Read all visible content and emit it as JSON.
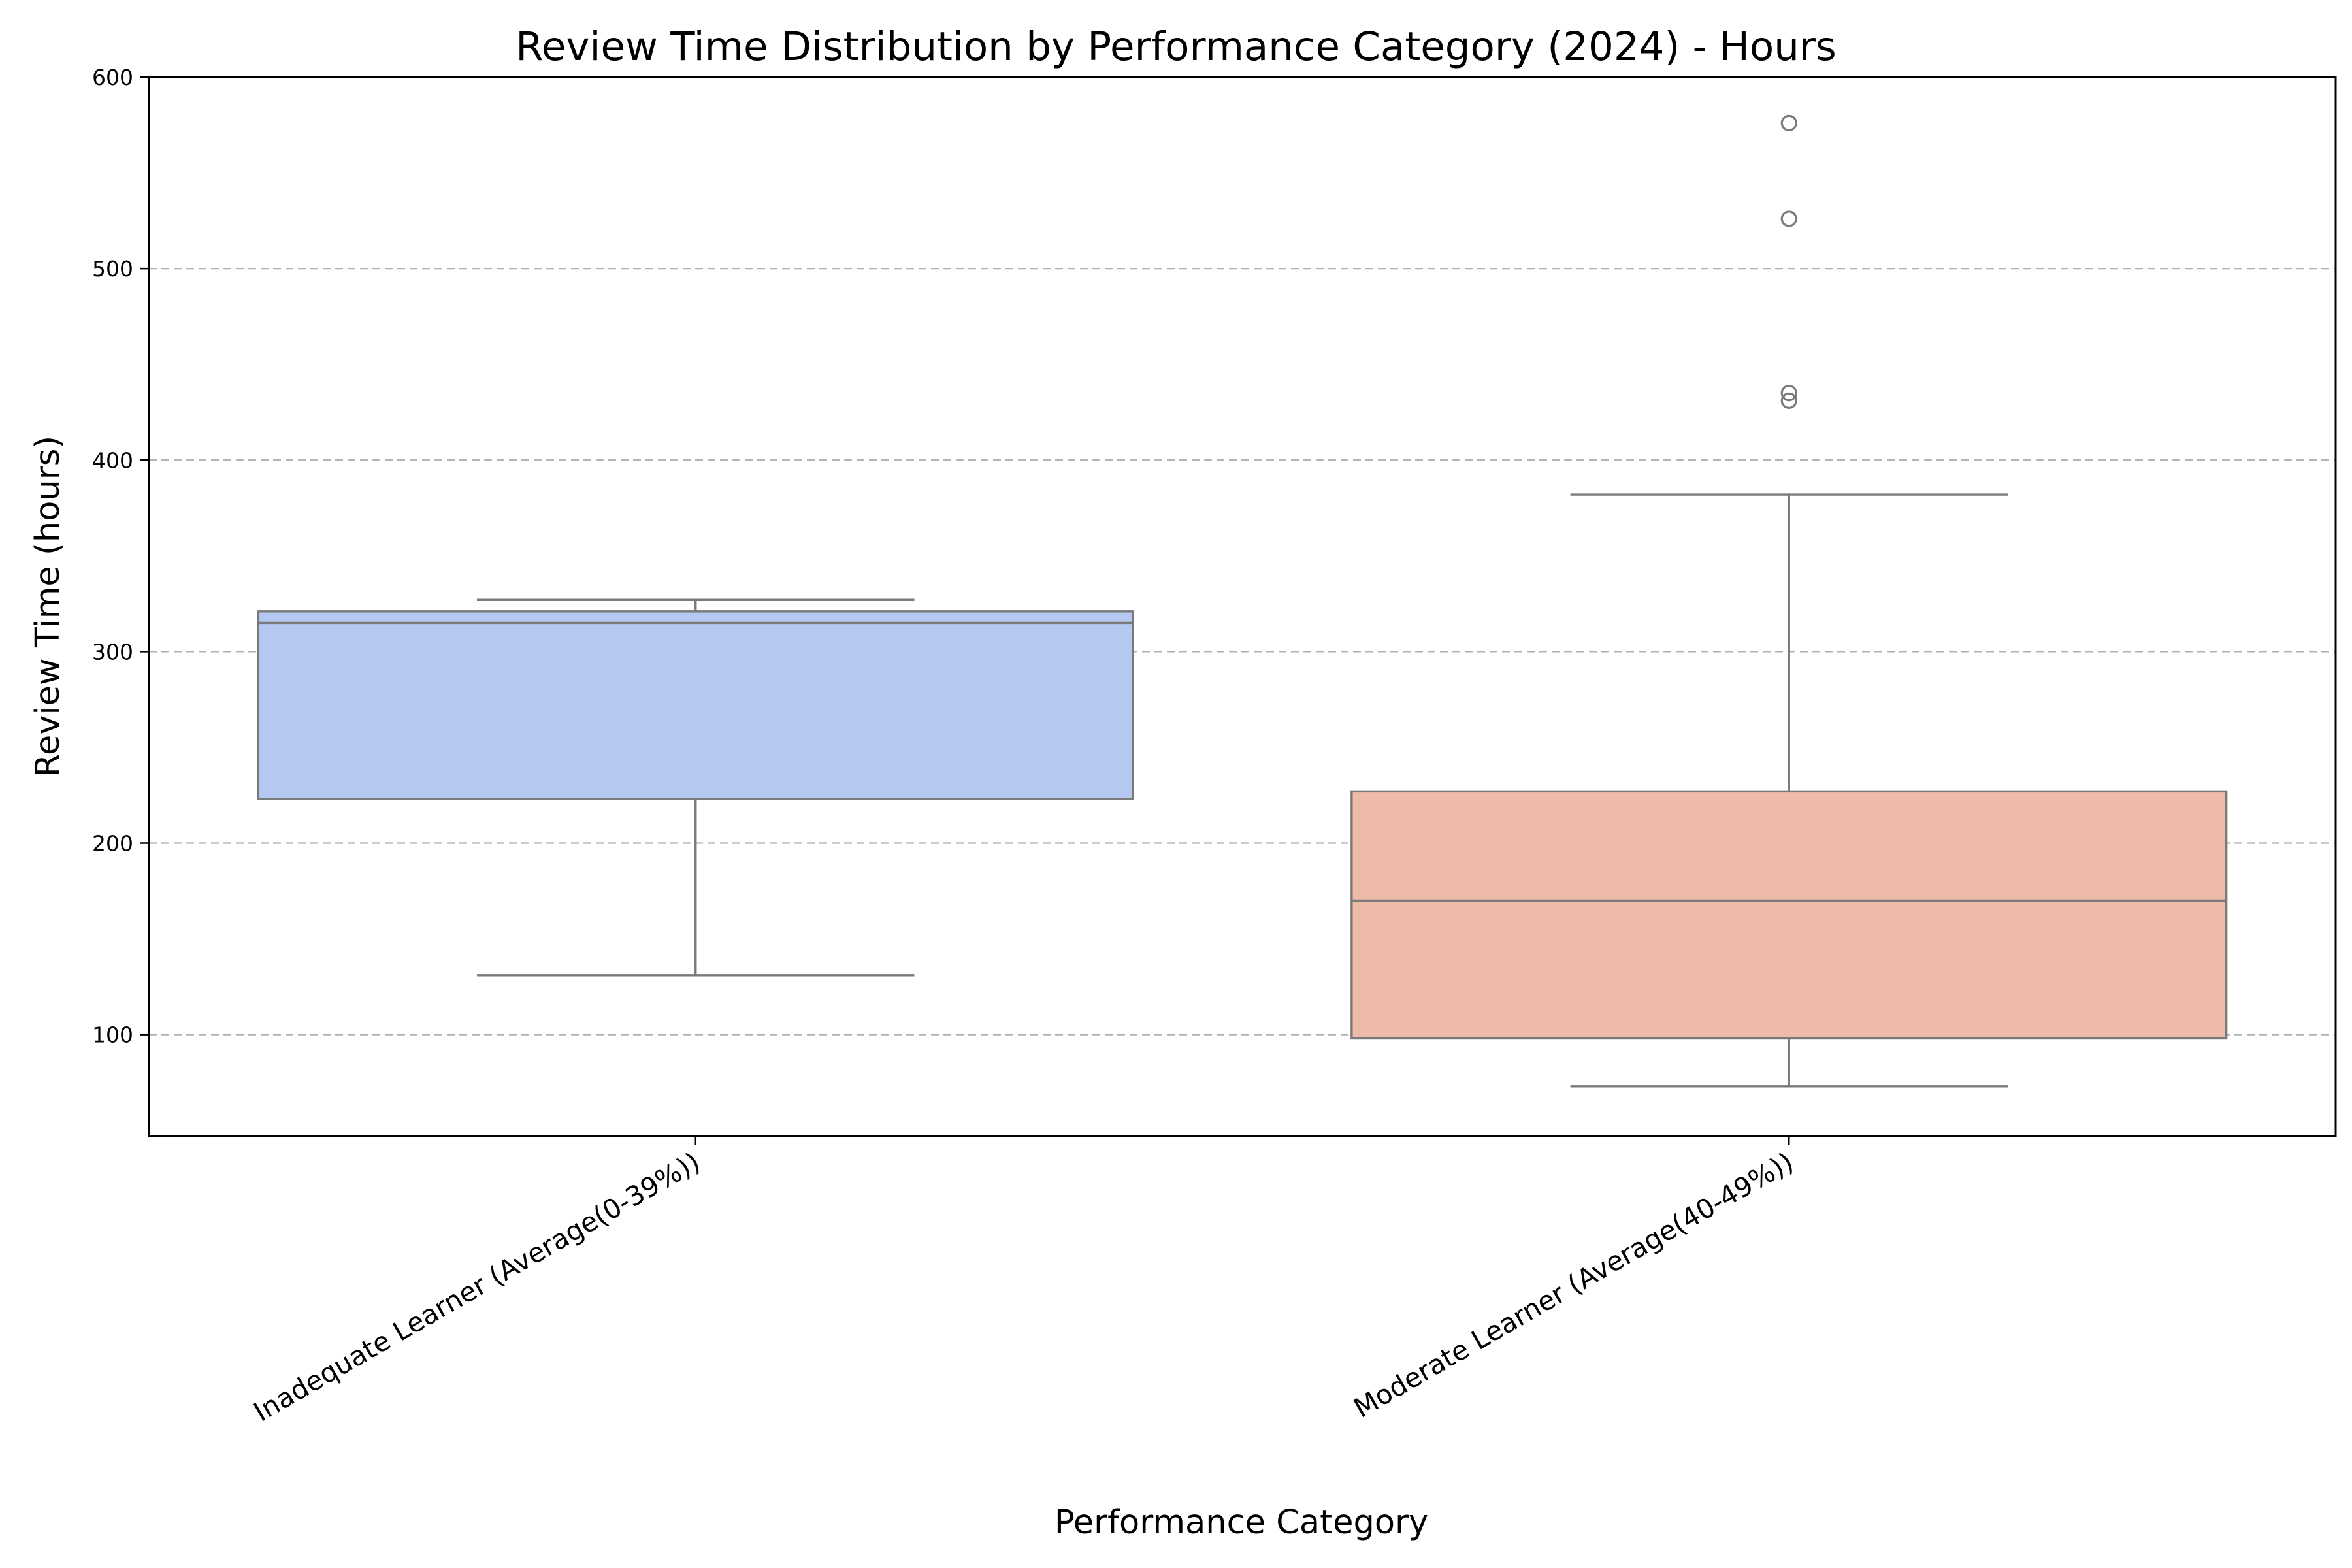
{
  "chart_data": {
    "type": "box",
    "title": "Review Time Distribution by Performance Category (2024) - Hours",
    "xlabel": "Performance Category",
    "ylabel": "Review Time (hours)",
    "ylim": [
      47,
      600
    ],
    "yticks": [
      100,
      200,
      300,
      400,
      500,
      600
    ],
    "grid": "y-dashed",
    "categories": [
      "Inadequate Learner (Average(0-39%))",
      "Moderate Learner (Average(40-49%))"
    ],
    "series": [
      {
        "category": "Inadequate Learner (Average(0-39%))",
        "color": "#b4c8f2",
        "whisker_low": 131,
        "q1": 223,
        "median": 315,
        "q3": 321,
        "whisker_high": 327,
        "outliers": []
      },
      {
        "category": "Moderate Learner (Average(40-49%))",
        "color": "#edbba7",
        "whisker_low": 73,
        "q1": 98,
        "median": 170,
        "q3": 227,
        "whisker_high": 382,
        "outliers": [
          431,
          435,
          526,
          576
        ]
      }
    ]
  }
}
